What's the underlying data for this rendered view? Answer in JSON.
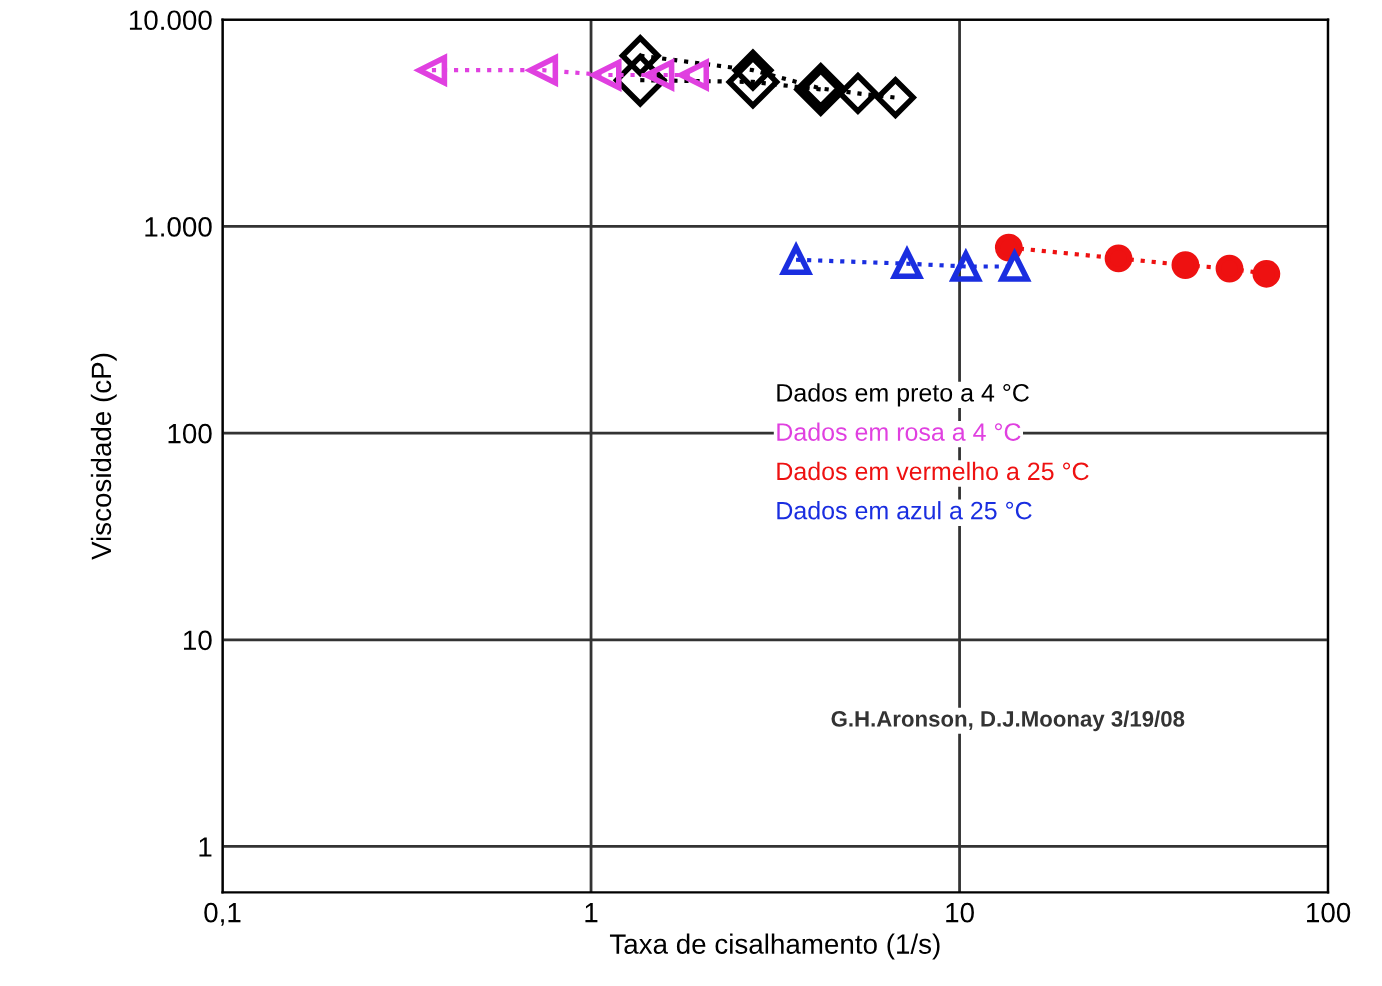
{
  "chart_data": {
    "type": "line",
    "xlabel": "Taxa de cisalhamento (1/s)",
    "ylabel": "Viscosidade (cP)",
    "log": "xy",
    "xlim": [
      0.1,
      100
    ],
    "ylim": [
      0.6,
      10000
    ],
    "xticks": [
      {
        "value": 0.1,
        "label": "0,1"
      },
      1,
      10,
      100
    ],
    "yticks": [
      1,
      10,
      100,
      {
        "value": 1000,
        "label": "1.000"
      },
      {
        "value": 10000,
        "label": "10.000"
      }
    ],
    "grid": true,
    "legend": "right",
    "line_style": "dotted",
    "series": [
      {
        "name": "Dados em preto a 4 °C",
        "color": "#000000",
        "marker": "diamond",
        "x": [
          1.36,
          2.75,
          4.2,
          5.3,
          6.7
        ],
        "values": [
          6700,
          5700,
          4650,
          4400,
          4200
        ]
      },
      {
        "color": "#000000",
        "marker": "diamond",
        "x": [
          1.36,
          2.75,
          4.2
        ],
        "values": [
          5100,
          5000,
          4600
        ]
      },
      {
        "name": "Dados em rosa a 4 °C",
        "color": "#e040e0",
        "marker": "triangle_left",
        "x": [
          0.37,
          0.74,
          1.1,
          1.53,
          1.9
        ],
        "values": [
          5700,
          5700,
          5400,
          5400,
          5400
        ]
      },
      {
        "name": "Dados em vermelho a 25 °C",
        "color": "#ee1111",
        "marker": "circle",
        "x": [
          13.6,
          27,
          41,
          54,
          68
        ],
        "values": [
          790,
          700,
          650,
          625,
          590
        ]
      },
      {
        "name": "Dados em azul a 25 °C",
        "color": "#1a2ee0",
        "marker": "triangle",
        "x": [
          3.6,
          7.2,
          10.4,
          14.1
        ],
        "values": [
          690,
          660,
          640,
          640
        ]
      }
    ],
    "annotations": [
      "G.H.Aronson, D.J.Moonay 3/19/08"
    ]
  }
}
